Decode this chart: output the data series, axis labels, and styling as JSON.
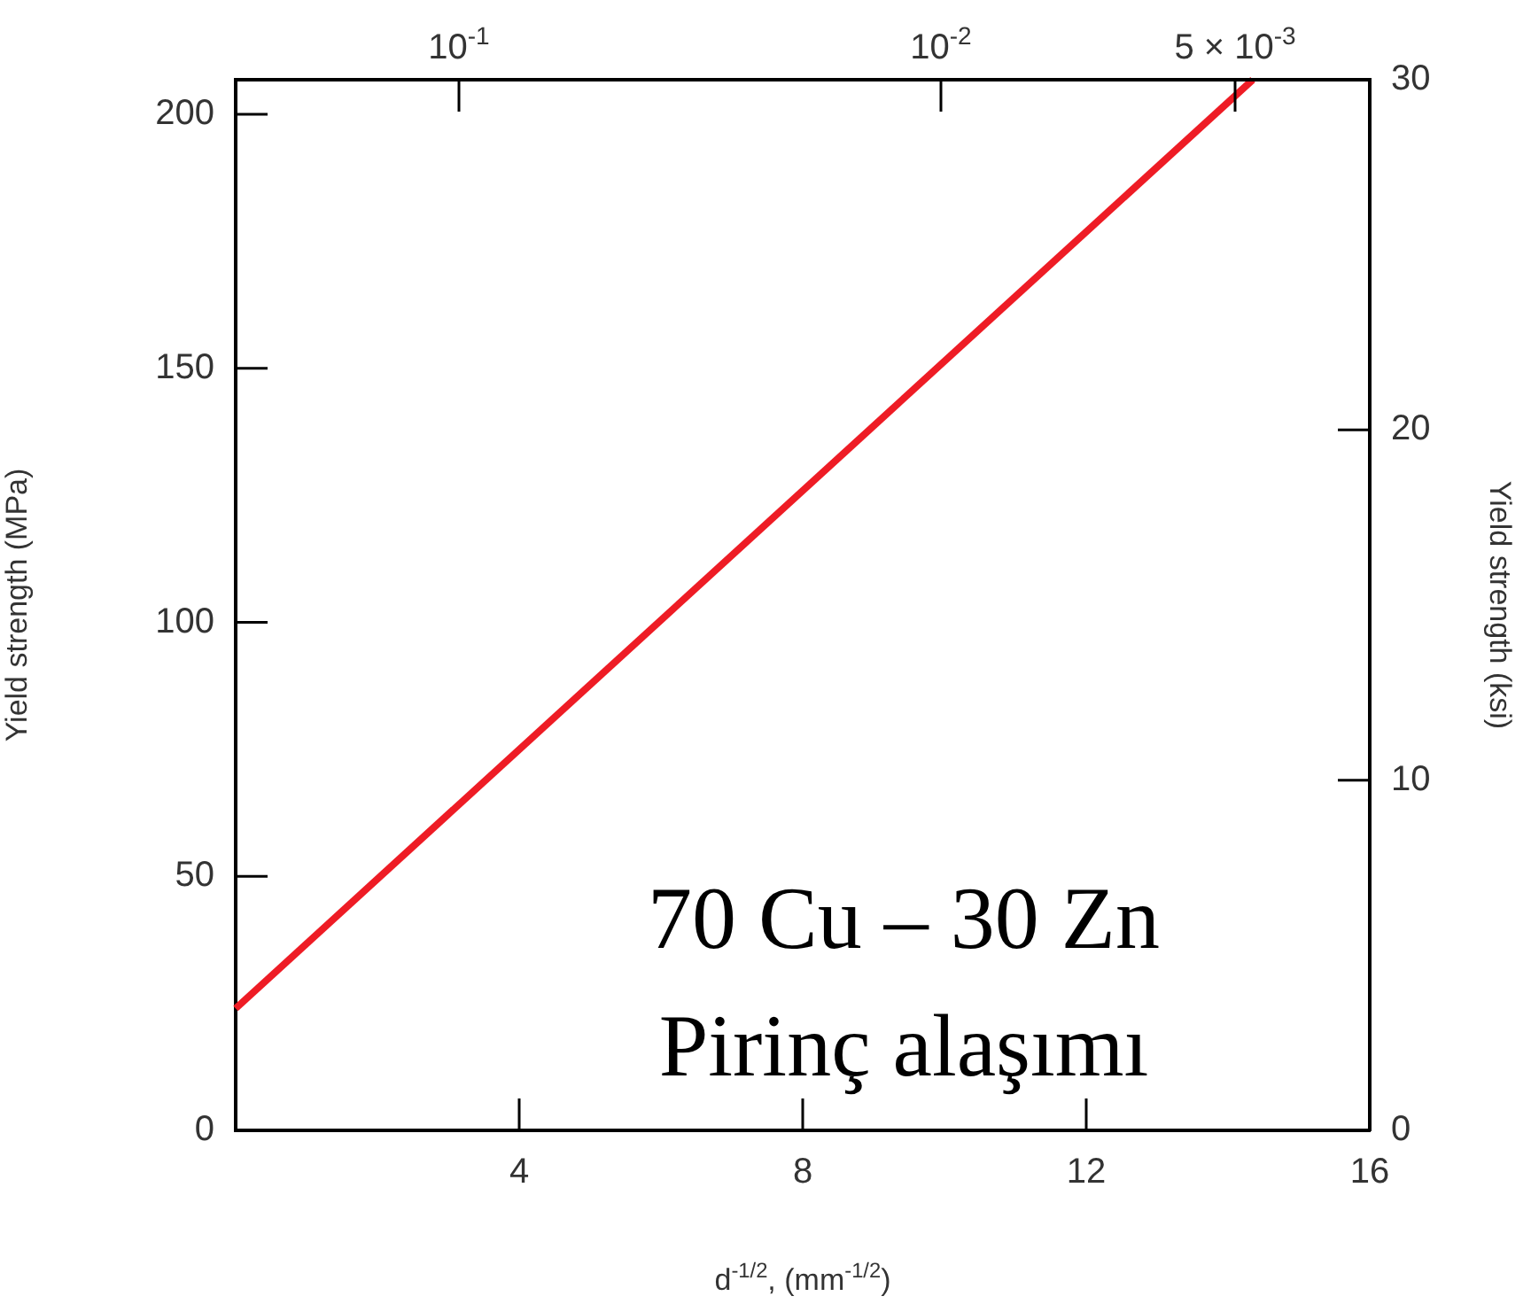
{
  "chart_data": {
    "type": "line",
    "x": [
      0,
      14.35
    ],
    "series": [
      {
        "color": "#ee1c25",
        "values": [
          24,
          206.8
        ]
      }
    ],
    "xlim": [
      0,
      16
    ],
    "xticks": [
      4,
      8,
      12,
      16
    ],
    "ylim": [
      0,
      206.8
    ],
    "yticks": [
      0,
      50,
      100,
      150,
      200
    ],
    "y2lim": [
      0,
      30
    ],
    "y2ticks": [
      0,
      10,
      20,
      30
    ],
    "xlabel": "d$^{-1/2}$, (mm$^{-1/2}$)",
    "ylabel": "Yield strength (MPa)",
    "y2label": "Yield strength (ksi)",
    "annotations": [
      "10$^{-1}$",
      "10$^{-2}$",
      "5 × 10$^{-3}$",
      "70 Cu – 30 Zn",
      "Pirinç alaşımı"
    ],
    "grid": false,
    "legend": false,
    "marker": "none",
    "line_style": "solid"
  }
}
